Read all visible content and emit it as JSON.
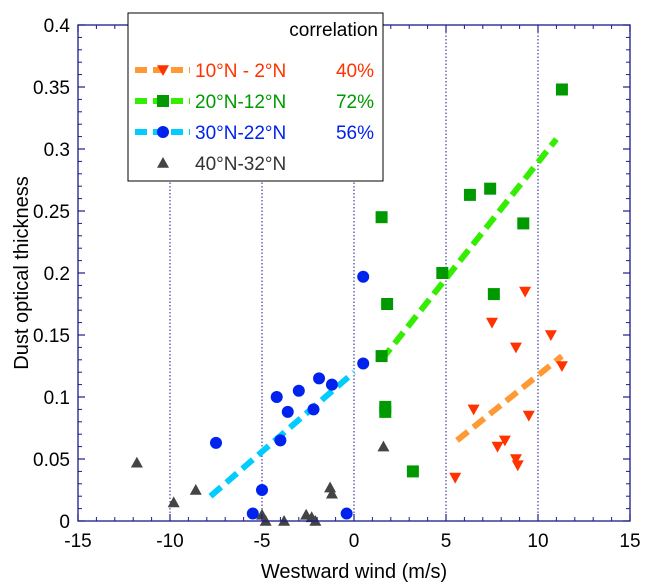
{
  "chart_data": {
    "type": "scatter",
    "title": "",
    "xlabel": "Westward wind (m/s)",
    "ylabel": "Dust optical thickness",
    "xlim": [
      -15,
      15
    ],
    "ylim": [
      0,
      0.4
    ],
    "xticks": [
      -15,
      -10,
      -5,
      0,
      5,
      10,
      15
    ],
    "xtick_labels": [
      "-15",
      "-10",
      "-5",
      "0",
      "5",
      "10",
      "15"
    ],
    "yticks": [
      0,
      0.05,
      0.1,
      0.15,
      0.2,
      0.25,
      0.3,
      0.35,
      0.4
    ],
    "ytick_labels": [
      "0",
      "0.05",
      "0.1",
      "0.15",
      "0.2",
      "0.25",
      "0.3",
      "0.35",
      "0.4"
    ],
    "vertical_reference_lines": [
      -10,
      -5,
      0,
      5,
      10
    ],
    "legend": {
      "title": "correlation",
      "placement": "top-left"
    },
    "series": [
      {
        "name": "10°N - 2°N",
        "correlation": "40%",
        "color": "#ff3300",
        "fit_color": "#ff9933",
        "marker": "triangle-down",
        "x": [
          5.5,
          6.5,
          7.5,
          7.8,
          8.2,
          8.8,
          8.8,
          8.9,
          9.3,
          9.5,
          10.7,
          11.3
        ],
        "y": [
          0.035,
          0.09,
          0.16,
          0.06,
          0.065,
          0.14,
          0.05,
          0.045,
          0.185,
          0.085,
          0.15,
          0.125
        ],
        "fit": {
          "x": [
            5.6,
            11.3
          ],
          "y": [
            0.065,
            0.133
          ]
        }
      },
      {
        "name": "20°N-12°N",
        "correlation": "72%",
        "color": "#009900",
        "fit_color": "#33ee00",
        "marker": "square",
        "x": [
          1.5,
          1.5,
          1.7,
          1.7,
          1.8,
          3.2,
          4.8,
          6.3,
          7.4,
          7.6,
          9.2,
          11.3
        ],
        "y": [
          0.245,
          0.133,
          0.088,
          0.092,
          0.175,
          0.04,
          0.2,
          0.263,
          0.268,
          0.183,
          0.24,
          0.348
        ],
        "fit": {
          "x": [
            1.5,
            11.0
          ],
          "y": [
            0.13,
            0.308
          ]
        }
      },
      {
        "name": "30°N-22°N",
        "correlation": "56%",
        "color": "#0022ee",
        "fit_color": "#00ccff",
        "marker": "circle",
        "x": [
          -7.5,
          -5.5,
          -5.0,
          -4.2,
          -4.0,
          -3.6,
          -3.0,
          -2.2,
          -1.9,
          -1.2,
          -0.4,
          0.5,
          0.5
        ],
        "y": [
          0.063,
          0.006,
          0.025,
          0.1,
          0.065,
          0.088,
          0.105,
          0.09,
          0.115,
          0.11,
          0.006,
          0.197,
          0.127
        ],
        "fit": {
          "x": [
            -7.8,
            0.0
          ],
          "y": [
            0.02,
            0.12
          ]
        }
      },
      {
        "name": "40°N-32°N",
        "correlation": "",
        "color": "#444444",
        "marker": "triangle-up",
        "x": [
          -11.8,
          -9.8,
          -8.6,
          -5.0,
          -4.8,
          -3.8,
          -2.6,
          -2.3,
          -2.1,
          -1.3,
          -1.2,
          1.6
        ],
        "y": [
          0.047,
          0.015,
          0.025,
          0.005,
          0.0,
          0.0,
          0.005,
          0.003,
          0.0,
          0.027,
          0.022,
          0.06
        ]
      }
    ]
  }
}
